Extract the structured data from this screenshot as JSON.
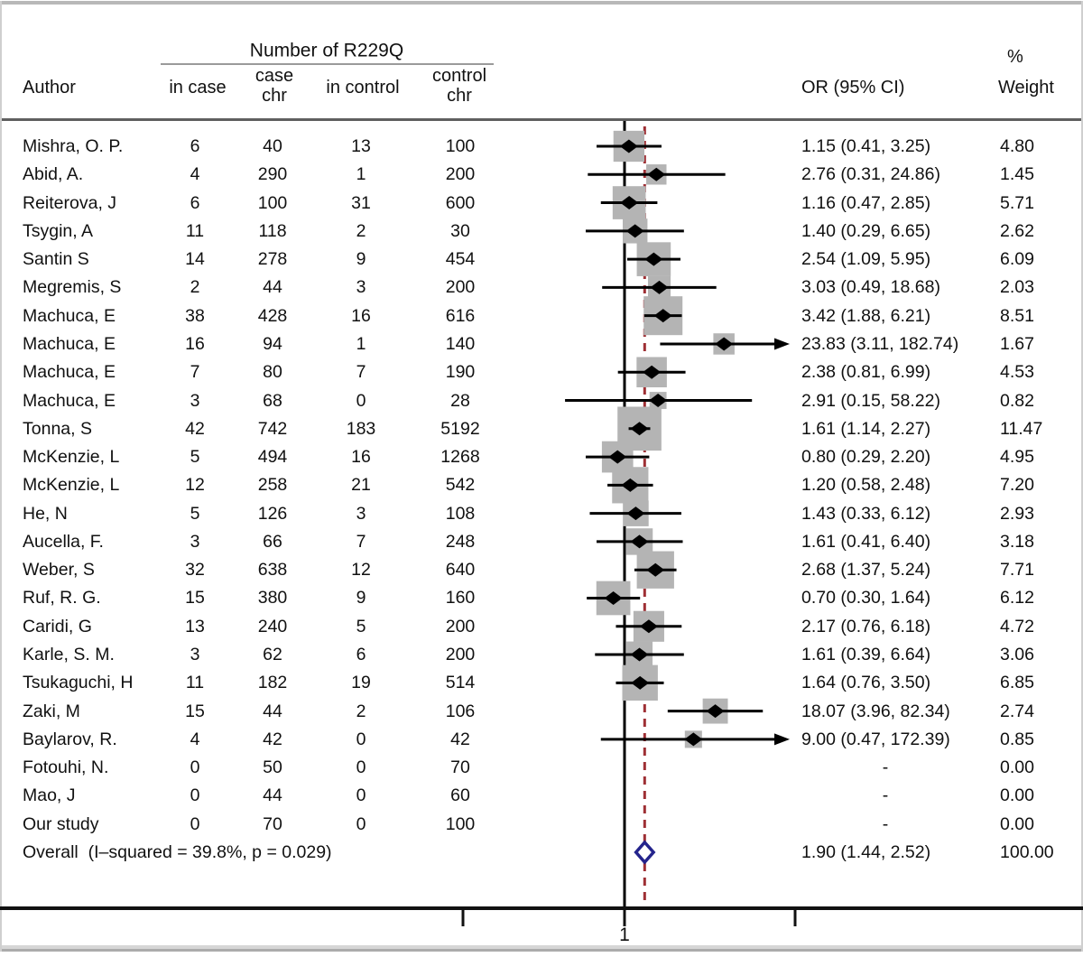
{
  "header": {
    "group_title": "Number of R229Q",
    "author": "Author",
    "in_case": "in case",
    "case_chr": "case\nchr",
    "in_control": "in control",
    "control_chr": "control\nchr",
    "or_ci": "OR (95% CI)",
    "percent": "%",
    "weight": "Weight"
  },
  "colors": {
    "weight_square": "#b4b4b4",
    "ci_line": "#000000",
    "point_marker": "#000000",
    "null_line": "#000000",
    "overall_or_line": "#9e2f34",
    "overall_diamond": "#24248c",
    "axis_line": "#111111"
  },
  "chart_data": {
    "type": "scatter",
    "variant": "forest-plot-meta-analysis",
    "title": "Number of R229Q",
    "x_axis": {
      "scale": "log",
      "tick_labels": [
        "1"
      ],
      "reference_line_or": 1.0,
      "overall_estimate_line_or": 1.9,
      "legend_position": "none",
      "grid": false
    },
    "columns": [
      "Author",
      "in case",
      "case chr",
      "in control",
      "control chr",
      "OR (95% CI)",
      "% Weight"
    ],
    "studies": [
      {
        "author": "Mishra, O. P.",
        "in_case": "6",
        "case_chr": "40",
        "in_control": "13",
        "control_chr": "100",
        "or": 1.15,
        "lo": 0.41,
        "hi": 3.25,
        "or_text": "1.15 (0.41, 3.25)",
        "weight": 4.8,
        "weight_text": "4.80",
        "arrow_right": false
      },
      {
        "author": "Abid, A.",
        "in_case": "4",
        "case_chr": "290",
        "in_control": "1",
        "control_chr": "200",
        "or": 2.76,
        "lo": 0.31,
        "hi": 24.86,
        "or_text": "2.76 (0.31, 24.86)",
        "weight": 1.45,
        "weight_text": "1.45",
        "arrow_right": false
      },
      {
        "author": "Reiterova, J",
        "in_case": "6",
        "case_chr": "100",
        "in_control": "31",
        "control_chr": "600",
        "or": 1.16,
        "lo": 0.47,
        "hi": 2.85,
        "or_text": "1.16 (0.47, 2.85)",
        "weight": 5.71,
        "weight_text": "5.71",
        "arrow_right": false
      },
      {
        "author": "Tsygin, A",
        "in_case": "11",
        "case_chr": "118",
        "in_control": "2",
        "control_chr": "30",
        "or": 1.4,
        "lo": 0.29,
        "hi": 6.65,
        "or_text": "1.40 (0.29, 6.65)",
        "weight": 2.62,
        "weight_text": "2.62",
        "arrow_right": false
      },
      {
        "author": "Santin S",
        "in_case": "14",
        "case_chr": "278",
        "in_control": "9",
        "control_chr": "454",
        "or": 2.54,
        "lo": 1.09,
        "hi": 5.95,
        "or_text": "2.54 (1.09, 5.95)",
        "weight": 6.09,
        "weight_text": "6.09",
        "arrow_right": false
      },
      {
        "author": "Megremis, S",
        "in_case": "2",
        "case_chr": "44",
        "in_control": "3",
        "control_chr": "200",
        "or": 3.03,
        "lo": 0.49,
        "hi": 18.68,
        "or_text": "3.03 (0.49, 18.68)",
        "weight": 2.03,
        "weight_text": "2.03",
        "arrow_right": false
      },
      {
        "author": "Machuca, E",
        "in_case": "38",
        "case_chr": "428",
        "in_control": "16",
        "control_chr": "616",
        "or": 3.42,
        "lo": 1.88,
        "hi": 6.21,
        "or_text": "3.42 (1.88, 6.21)",
        "weight": 8.51,
        "weight_text": "8.51",
        "arrow_right": false
      },
      {
        "author": "Machuca, E",
        "in_case": "16",
        "case_chr": "94",
        "in_control": "1",
        "control_chr": "140",
        "or": 23.83,
        "lo": 3.11,
        "hi": 182.74,
        "or_text": "23.83 (3.11, 182.74)",
        "weight": 1.67,
        "weight_text": "1.67",
        "arrow_right": true
      },
      {
        "author": "Machuca, E",
        "in_case": "7",
        "case_chr": "80",
        "in_control": "7",
        "control_chr": "190",
        "or": 2.38,
        "lo": 0.81,
        "hi": 6.99,
        "or_text": "2.38 (0.81, 6.99)",
        "weight": 4.53,
        "weight_text": "4.53",
        "arrow_right": false
      },
      {
        "author": "Machuca, E",
        "in_case": "3",
        "case_chr": "68",
        "in_control": "0",
        "control_chr": "28",
        "or": 2.91,
        "lo": 0.15,
        "hi": 58.22,
        "or_text": "2.91 (0.15, 58.22)",
        "weight": 0.82,
        "weight_text": "0.82",
        "arrow_right": false
      },
      {
        "author": "Tonna, S",
        "in_case": "42",
        "case_chr": "742",
        "in_control": "183",
        "control_chr": "5192",
        "or": 1.61,
        "lo": 1.14,
        "hi": 2.27,
        "or_text": "1.61 (1.14, 2.27)",
        "weight": 11.47,
        "weight_text": "11.47",
        "arrow_right": false
      },
      {
        "author": "McKenzie, L",
        "in_case": "5",
        "case_chr": "494",
        "in_control": "16",
        "control_chr": "1268",
        "or": 0.8,
        "lo": 0.29,
        "hi": 2.2,
        "or_text": "0.80 (0.29, 2.20)",
        "weight": 4.95,
        "weight_text": "4.95",
        "arrow_right": false
      },
      {
        "author": "McKenzie, L",
        "in_case": "12",
        "case_chr": "258",
        "in_control": "21",
        "control_chr": "542",
        "or": 1.2,
        "lo": 0.58,
        "hi": 2.48,
        "or_text": "1.20 (0.58, 2.48)",
        "weight": 7.2,
        "weight_text": "7.20",
        "arrow_right": false
      },
      {
        "author": "He, N",
        "in_case": "5",
        "case_chr": "126",
        "in_control": "3",
        "control_chr": "108",
        "or": 1.43,
        "lo": 0.33,
        "hi": 6.12,
        "or_text": "1.43 (0.33, 6.12)",
        "weight": 2.93,
        "weight_text": "2.93",
        "arrow_right": false
      },
      {
        "author": "Aucella, F.",
        "in_case": "3",
        "case_chr": "66",
        "in_control": "7",
        "control_chr": "248",
        "or": 1.61,
        "lo": 0.41,
        "hi": 6.4,
        "or_text": "1.61 (0.41, 6.40)",
        "weight": 3.18,
        "weight_text": "3.18",
        "arrow_right": false
      },
      {
        "author": "Weber, S",
        "in_case": "32",
        "case_chr": "638",
        "in_control": "12",
        "control_chr": "640",
        "or": 2.68,
        "lo": 1.37,
        "hi": 5.24,
        "or_text": "2.68 (1.37, 5.24)",
        "weight": 7.71,
        "weight_text": "7.71",
        "arrow_right": false
      },
      {
        "author": "Ruf, R. G.",
        "in_case": "15",
        "case_chr": "380",
        "in_control": "9",
        "control_chr": "160",
        "or": 0.7,
        "lo": 0.3,
        "hi": 1.64,
        "or_text": "0.70 (0.30, 1.64)",
        "weight": 6.12,
        "weight_text": "6.12",
        "arrow_right": false
      },
      {
        "author": "Caridi, G",
        "in_case": "13",
        "case_chr": "240",
        "in_control": "5",
        "control_chr": "200",
        "or": 2.17,
        "lo": 0.76,
        "hi": 6.18,
        "or_text": "2.17 (0.76, 6.18)",
        "weight": 4.72,
        "weight_text": "4.72",
        "arrow_right": false
      },
      {
        "author": "Karle, S. M.",
        "in_case": "3",
        "case_chr": "62",
        "in_control": "6",
        "control_chr": "200",
        "or": 1.61,
        "lo": 0.39,
        "hi": 6.64,
        "or_text": "1.61 (0.39, 6.64)",
        "weight": 3.06,
        "weight_text": "3.06",
        "arrow_right": false
      },
      {
        "author": "Tsukaguchi, H",
        "in_case": "11",
        "case_chr": "182",
        "in_control": "19",
        "control_chr": "514",
        "or": 1.64,
        "lo": 0.76,
        "hi": 3.5,
        "or_text": "1.64 (0.76, 3.50)",
        "weight": 6.85,
        "weight_text": "6.85",
        "arrow_right": false
      },
      {
        "author": "Zaki, M",
        "in_case": "15",
        "case_chr": "44",
        "in_control": "2",
        "control_chr": "106",
        "or": 18.07,
        "lo": 3.96,
        "hi": 82.34,
        "or_text": "18.07 (3.96, 82.34)",
        "weight": 2.74,
        "weight_text": "2.74",
        "arrow_right": false
      },
      {
        "author": "Baylarov, R.",
        "in_case": "4",
        "case_chr": "42",
        "in_control": "0",
        "control_chr": "42",
        "or": 9.0,
        "lo": 0.47,
        "hi": 172.39,
        "or_text": "9.00 (0.47, 172.39)",
        "weight": 0.85,
        "weight_text": "0.85",
        "arrow_right": true
      },
      {
        "author": "Fotouhi, N.",
        "in_case": "0",
        "case_chr": "50",
        "in_control": "0",
        "control_chr": "70",
        "or": null,
        "lo": null,
        "hi": null,
        "or_text": "-",
        "weight": 0.0,
        "weight_text": "0.00",
        "arrow_right": false
      },
      {
        "author": "Mao, J",
        "in_case": "0",
        "case_chr": "44",
        "in_control": "0",
        "control_chr": "60",
        "or": null,
        "lo": null,
        "hi": null,
        "or_text": "-",
        "weight": 0.0,
        "weight_text": "0.00",
        "arrow_right": false
      },
      {
        "author": "Our study",
        "in_case": "0",
        "case_chr": "70",
        "in_control": "0",
        "control_chr": "100",
        "or": null,
        "lo": null,
        "hi": null,
        "or_text": "-",
        "weight": 0.0,
        "weight_text": "0.00",
        "arrow_right": false
      }
    ],
    "overall": {
      "label": "Overall  (I–squared = 39.8%, p = 0.029)",
      "or": 1.9,
      "lo": 1.44,
      "hi": 2.52,
      "or_text": "1.90 (1.44, 2.52)",
      "weight": 100.0,
      "weight_text": "100.00"
    },
    "axis": {
      "tick_label": "1"
    }
  }
}
